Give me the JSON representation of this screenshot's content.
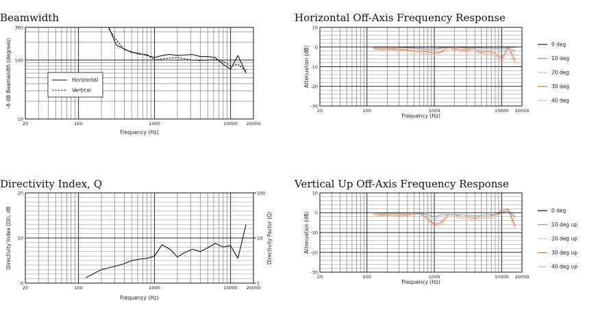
{
  "chart_data": [
    {
      "type": "line",
      "title": "Beamwidth",
      "xlabel": "Frequency (Hz)",
      "ylabel": "-6 dB Beamwidth (degrees)",
      "xscale": "log",
      "yscale": "log",
      "xlim": [
        20,
        20000
      ],
      "ylim": [
        10,
        360
      ],
      "xticks": [
        "20",
        "100",
        "1000",
        "10000",
        "20000"
      ],
      "yticks": [
        "10",
        "100",
        "360"
      ],
      "legend": {
        "position": "lower-left",
        "entries": [
          "Horizontal",
          "Vertical"
        ]
      },
      "series": [
        {
          "name": "Horizontal",
          "style": "solid",
          "x": [
            250,
            315,
            400,
            500,
            630,
            800,
            1000,
            1250,
            1600,
            2000,
            2500,
            3150,
            4000,
            5000,
            6300,
            8000,
            10000,
            12500,
            16000
          ],
          "y": [
            360,
            180,
            155,
            135,
            130,
            120,
            110,
            120,
            125,
            120,
            122,
            125,
            115,
            115,
            110,
            85,
            70,
            120,
            60
          ]
        },
        {
          "name": "Vertical",
          "style": "dashed",
          "x": [
            250,
            315,
            400,
            500,
            630,
            800,
            1000,
            1250,
            1600,
            2000,
            2500,
            3150,
            4000,
            5000,
            6300,
            8000,
            10000,
            12500,
            16000
          ],
          "y": [
            340,
            220,
            150,
            140,
            125,
            125,
            100,
            105,
            108,
            110,
            105,
            100,
            98,
            100,
            102,
            95,
            80,
            85,
            65
          ]
        }
      ]
    },
    {
      "type": "line",
      "title": "Horizontal Off-Axis Frequency Response",
      "xlabel": "Frequency (Hz)",
      "ylabel": "Attenuation (dB)",
      "xscale": "log",
      "xlim": [
        20,
        20000
      ],
      "ylim": [
        -30,
        10
      ],
      "xticks": [
        "20",
        "100",
        "1000",
        "10000",
        "20000"
      ],
      "yticks": [
        "10",
        "0",
        "-10",
        "-20",
        "-30"
      ],
      "legend": {
        "position": "right",
        "entries": [
          "0 deg",
          "10 deg",
          "20 deg",
          "30 deg",
          "40 deg"
        ]
      },
      "series": [
        {
          "name": "0 deg",
          "color": "#222222",
          "x": [
            125,
            250,
            500,
            1000,
            2000,
            4000,
            8000,
            10000,
            12500,
            16000
          ],
          "y": [
            0,
            0,
            0,
            0,
            0,
            0,
            0,
            0,
            0,
            0
          ]
        },
        {
          "name": "10 deg",
          "color": "#9a9a9a",
          "x": [
            125,
            250,
            500,
            800,
            1000,
            1250,
            1600,
            2000,
            3150,
            5000,
            8000,
            10000,
            12500,
            16000
          ],
          "y": [
            0,
            0,
            -0.5,
            -1,
            -1,
            -0.5,
            0,
            0,
            -0.5,
            -0.5,
            -1,
            -1,
            -0.5,
            -2
          ]
        },
        {
          "name": "20 deg",
          "color": "#c8c8c8",
          "x": [
            125,
            250,
            500,
            800,
            1000,
            1250,
            1600,
            2000,
            3150,
            5000,
            8000,
            10000,
            12500,
            16000
          ],
          "y": [
            0,
            -0.5,
            -1,
            -1.5,
            -1.5,
            -1,
            0,
            -0.5,
            -1,
            -1.5,
            -2,
            -2.5,
            -1,
            -4
          ]
        },
        {
          "name": "30 deg",
          "color": "#e8783c",
          "x": [
            125,
            160,
            250,
            400,
            500,
            630,
            800,
            1000,
            1250,
            1600,
            2000,
            2500,
            3150,
            4000,
            5000,
            6300,
            8000,
            10000,
            12500,
            16000
          ],
          "y": [
            -0.5,
            -1,
            -1,
            -1.5,
            -2,
            -2,
            -2.5,
            -3,
            -2.5,
            0,
            -1,
            -1.5,
            -1.5,
            -1,
            -3,
            -2,
            -3,
            -6,
            0,
            -7
          ]
        },
        {
          "name": "40 deg",
          "color": "#f5b99a",
          "x": [
            125,
            160,
            250,
            400,
            500,
            630,
            800,
            1000,
            1250,
            1600,
            2000,
            2500,
            3150,
            4000,
            5000,
            6300,
            8000,
            10000,
            12500,
            16000
          ],
          "y": [
            -1,
            -1.5,
            -1.5,
            -2,
            -2.5,
            -3,
            -3.5,
            -4,
            -3,
            -1,
            -1.5,
            -2.5,
            -2.5,
            -2,
            -4,
            -3,
            -4,
            -8,
            -1,
            -9
          ]
        }
      ]
    },
    {
      "type": "line",
      "title": "Directivity Index, Q",
      "xlabel": "Frequency (Hz)",
      "ylabel": "Directivity Index (DI), dB",
      "y2label": "Directivity Factor (Q)",
      "xscale": "log",
      "xlim": [
        20,
        20000
      ],
      "ylim": [
        0,
        20
      ],
      "xticks": [
        "20",
        "100",
        "1000",
        "10000",
        "20000"
      ],
      "yticks": [
        "0",
        "10",
        "20"
      ],
      "y2ticks": [
        "1",
        "10",
        "100"
      ],
      "series": [
        {
          "name": "DI",
          "x": [
            125,
            200,
            315,
            400,
            500,
            630,
            800,
            1000,
            1250,
            1600,
            2000,
            2500,
            3150,
            4000,
            5000,
            6300,
            8000,
            10000,
            12500,
            16000
          ],
          "y": [
            1.2,
            3,
            3.8,
            4.3,
            5,
            5.3,
            5.5,
            6,
            8.5,
            7.5,
            5.8,
            6.8,
            7.5,
            7,
            7.8,
            8.8,
            8,
            8.3,
            5.5,
            13
          ]
        }
      ]
    },
    {
      "type": "line",
      "title": "Vertical Up Off-Axis Frequency Response",
      "xlabel": "Frequency (Hz)",
      "ylabel": "Attenuation (dB)",
      "xscale": "log",
      "xlim": [
        20,
        20000
      ],
      "ylim": [
        -30,
        10
      ],
      "xticks": [
        "20",
        "100",
        "1000",
        "10000",
        "20000"
      ],
      "yticks": [
        "10",
        "0",
        "-10",
        "-20",
        "-30"
      ],
      "legend": {
        "position": "right",
        "entries": [
          "0 deg",
          "10 deg up",
          "20 deg up",
          "30 deg up",
          "40 deg up"
        ]
      },
      "series": [
        {
          "name": "0 deg",
          "color": "#222222",
          "x": [
            125,
            250,
            500,
            1000,
            2000,
            4000,
            8000,
            10000,
            12500,
            16000
          ],
          "y": [
            0,
            0,
            0,
            0,
            0,
            0,
            0,
            0,
            0,
            0
          ]
        },
        {
          "name": "10 deg up",
          "color": "#9a9a9a",
          "x": [
            125,
            250,
            500,
            800,
            1000,
            1250,
            1600,
            2500,
            4000,
            6300,
            8000,
            10000,
            12500,
            16000
          ],
          "y": [
            0,
            -0.5,
            0,
            -1,
            -2,
            -1,
            -1,
            -1,
            -1.5,
            -1,
            -1,
            0,
            1,
            -2
          ]
        },
        {
          "name": "20 deg up",
          "color": "#c8c8c8",
          "x": [
            125,
            250,
            500,
            800,
            1000,
            1250,
            1600,
            2500,
            4000,
            6300,
            8000,
            10000,
            12500,
            16000
          ],
          "y": [
            -0.5,
            -1,
            -0.5,
            -2,
            -3.5,
            -2,
            -2,
            -2,
            -2.5,
            -2,
            -2,
            -0.5,
            1,
            -3
          ]
        },
        {
          "name": "30 deg up",
          "color": "#e8783c",
          "x": [
            125,
            160,
            250,
            400,
            500,
            630,
            800,
            1000,
            1250,
            1600,
            2000,
            2500,
            3150,
            4000,
            5000,
            6300,
            8000,
            10000,
            12500,
            16000
          ],
          "y": [
            -0.5,
            -1,
            -1,
            -1,
            -0.5,
            0,
            -3,
            -6,
            -5,
            -1,
            -1,
            -2,
            -2,
            -3,
            -2,
            -2,
            -1,
            1,
            2,
            -7
          ]
        },
        {
          "name": "40 deg up",
          "color": "#f5b99a",
          "x": [
            125,
            160,
            250,
            400,
            500,
            630,
            800,
            1000,
            1250,
            1600,
            2000,
            2500,
            3150,
            4000,
            5000,
            6300,
            8000,
            10000,
            12500,
            16000
          ],
          "y": [
            -1,
            -1.5,
            -1.5,
            -1.5,
            -1,
            -0.5,
            -4,
            -7,
            -6,
            -2,
            -2,
            -3,
            -3,
            -4,
            -3,
            -3,
            -2,
            0,
            1,
            -8
          ]
        }
      ]
    }
  ]
}
